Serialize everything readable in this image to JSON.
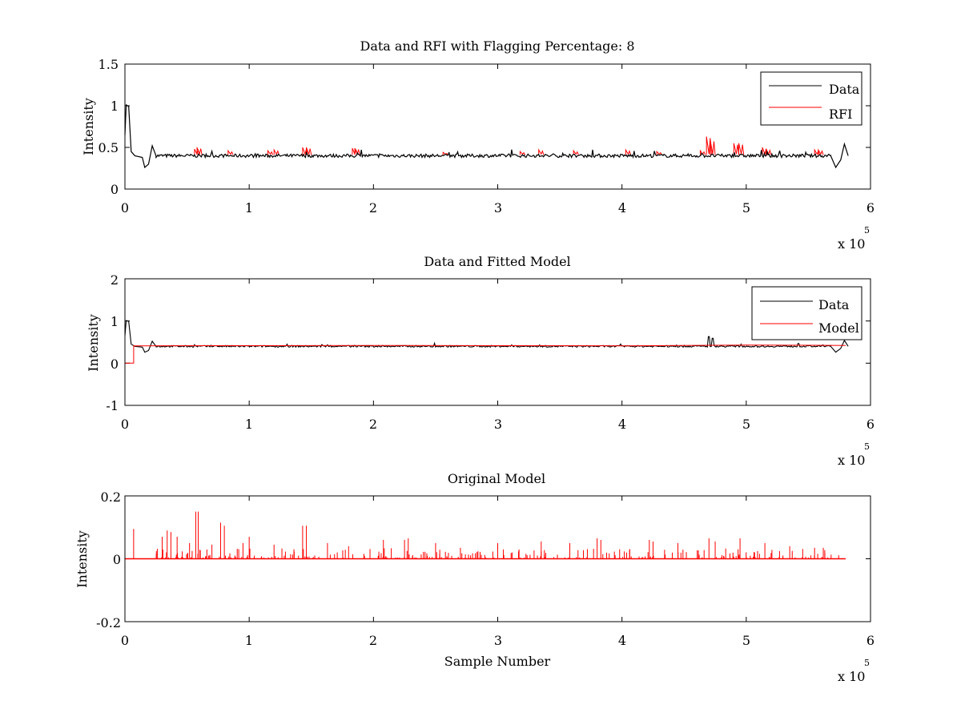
{
  "figure": {
    "background": "#ffffff",
    "exponent_label": "x 10",
    "exponent_power": "5"
  },
  "colors": {
    "data": "#000000",
    "rfi": "#ff0000",
    "model": "#ff0000"
  },
  "chart_data": [
    {
      "type": "line",
      "title": "Data and RFI with Flagging Percentage: 8",
      "xlabel": "",
      "ylabel": "Intensity",
      "xlim": [
        0,
        6
      ],
      "ylim": [
        0,
        1.5
      ],
      "x_ticks": [
        "0",
        "1",
        "2",
        "3",
        "4",
        "5",
        "6"
      ],
      "y_ticks": [
        "0",
        "0.5",
        "1",
        "1.5"
      ],
      "x_scale_note": "x 10^5",
      "legend_position": "top-right",
      "series": [
        {
          "name": "Data",
          "color": "#000000",
          "baseline": 0.4,
          "features": [
            {
              "x": 0.0,
              "y": 0.65
            },
            {
              "x": 0.01,
              "y": 1.01
            },
            {
              "x": 0.03,
              "y": 0.99
            },
            {
              "x": 0.05,
              "y": 0.45
            },
            {
              "x": 0.08,
              "y": 0.4
            },
            {
              "x": 0.14,
              "y": 0.38
            },
            {
              "x": 0.16,
              "y": 0.26
            },
            {
              "x": 0.19,
              "y": 0.3
            },
            {
              "x": 0.22,
              "y": 0.52
            },
            {
              "x": 0.25,
              "y": 0.4
            },
            {
              "x": 5.68,
              "y": 0.4
            },
            {
              "x": 5.72,
              "y": 0.26
            },
            {
              "x": 5.76,
              "y": 0.35
            },
            {
              "x": 5.79,
              "y": 0.54
            },
            {
              "x": 5.82,
              "y": 0.4
            }
          ]
        },
        {
          "name": "RFI",
          "color": "#ff0000",
          "spikes": [
            {
              "x": 0.58,
              "y": 0.48
            },
            {
              "x": 0.6,
              "y": 0.5
            },
            {
              "x": 0.85,
              "y": 0.46
            },
            {
              "x": 1.17,
              "y": 0.46
            },
            {
              "x": 1.22,
              "y": 0.47
            },
            {
              "x": 1.45,
              "y": 0.5
            },
            {
              "x": 1.48,
              "y": 0.5
            },
            {
              "x": 1.85,
              "y": 0.49
            },
            {
              "x": 1.87,
              "y": 0.49
            },
            {
              "x": 2.58,
              "y": 0.44
            },
            {
              "x": 3.2,
              "y": 0.45
            },
            {
              "x": 3.35,
              "y": 0.47
            },
            {
              "x": 3.63,
              "y": 0.46
            },
            {
              "x": 4.05,
              "y": 0.47
            },
            {
              "x": 4.3,
              "y": 0.45
            },
            {
              "x": 4.65,
              "y": 0.46
            },
            {
              "x": 4.7,
              "y": 0.63
            },
            {
              "x": 4.73,
              "y": 0.59
            },
            {
              "x": 4.92,
              "y": 0.55
            },
            {
              "x": 4.96,
              "y": 0.55
            },
            {
              "x": 5.15,
              "y": 0.5
            },
            {
              "x": 5.18,
              "y": 0.48
            },
            {
              "x": 5.57,
              "y": 0.47
            },
            {
              "x": 5.6,
              "y": 0.47
            }
          ]
        }
      ]
    },
    {
      "type": "line",
      "title": "Data and Fitted Model",
      "xlabel": "",
      "ylabel": "Intensity",
      "xlim": [
        0,
        6
      ],
      "ylim": [
        -1,
        2
      ],
      "x_ticks": [
        "0",
        "1",
        "2",
        "3",
        "4",
        "5",
        "6"
      ],
      "y_ticks": [
        "-1",
        "0",
        "1",
        "2"
      ],
      "x_scale_note": "x 10^5",
      "legend_position": "top-right",
      "series": [
        {
          "name": "Data",
          "color": "#000000",
          "baseline": 0.4,
          "features": [
            {
              "x": 0.0,
              "y": 0.65
            },
            {
              "x": 0.01,
              "y": 1.01
            },
            {
              "x": 0.03,
              "y": 0.99
            },
            {
              "x": 0.05,
              "y": 0.45
            },
            {
              "x": 0.08,
              "y": 0.4
            },
            {
              "x": 0.14,
              "y": 0.38
            },
            {
              "x": 0.16,
              "y": 0.26
            },
            {
              "x": 0.19,
              "y": 0.3
            },
            {
              "x": 0.22,
              "y": 0.52
            },
            {
              "x": 0.25,
              "y": 0.4
            },
            {
              "x": 4.7,
              "y": 0.63
            },
            {
              "x": 4.73,
              "y": 0.59
            },
            {
              "x": 5.68,
              "y": 0.4
            },
            {
              "x": 5.72,
              "y": 0.26
            },
            {
              "x": 5.76,
              "y": 0.35
            },
            {
              "x": 5.79,
              "y": 0.54
            },
            {
              "x": 5.82,
              "y": 0.4
            }
          ]
        },
        {
          "name": "Model",
          "color": "#ff0000",
          "points": [
            {
              "x": 0.0,
              "y": 0.0
            },
            {
              "x": 0.07,
              "y": 0.0
            },
            {
              "x": 0.07,
              "y": 0.41
            },
            {
              "x": 2.0,
              "y": 0.42
            },
            {
              "x": 4.0,
              "y": 0.41
            },
            {
              "x": 5.0,
              "y": 0.43
            },
            {
              "x": 5.8,
              "y": 0.42
            }
          ]
        }
      ]
    },
    {
      "type": "line",
      "title": "Original Model",
      "xlabel": "Sample Number",
      "ylabel": "Intensity",
      "xlim": [
        0,
        6
      ],
      "ylim": [
        -0.2,
        0.2
      ],
      "x_ticks": [
        "0",
        "1",
        "2",
        "3",
        "4",
        "5",
        "6"
      ],
      "y_ticks": [
        "-0.2",
        "0",
        "0.2"
      ],
      "x_scale_note": "x 10^5",
      "series": [
        {
          "color": "#ff0000",
          "baseline": 0,
          "x_end": 5.8,
          "spikes": [
            {
              "x": 0.07,
              "y": 0.095
            },
            {
              "x": 0.3,
              "y": 0.07
            },
            {
              "x": 0.34,
              "y": 0.09
            },
            {
              "x": 0.37,
              "y": 0.085
            },
            {
              "x": 0.42,
              "y": 0.07
            },
            {
              "x": 0.52,
              "y": 0.05
            },
            {
              "x": 0.57,
              "y": 0.15
            },
            {
              "x": 0.59,
              "y": 0.15
            },
            {
              "x": 0.7,
              "y": 0.045
            },
            {
              "x": 0.77,
              "y": 0.115
            },
            {
              "x": 0.8,
              "y": 0.105
            },
            {
              "x": 0.95,
              "y": 0.05
            },
            {
              "x": 1.0,
              "y": 0.07
            },
            {
              "x": 1.2,
              "y": 0.045
            },
            {
              "x": 1.43,
              "y": 0.105
            },
            {
              "x": 1.46,
              "y": 0.105
            },
            {
              "x": 1.63,
              "y": 0.05
            },
            {
              "x": 1.8,
              "y": 0.04
            },
            {
              "x": 2.08,
              "y": 0.06
            },
            {
              "x": 2.25,
              "y": 0.06
            },
            {
              "x": 2.28,
              "y": 0.065
            },
            {
              "x": 2.5,
              "y": 0.05
            },
            {
              "x": 2.7,
              "y": 0.035
            },
            {
              "x": 3.0,
              "y": 0.05
            },
            {
              "x": 3.35,
              "y": 0.055
            },
            {
              "x": 3.58,
              "y": 0.05
            },
            {
              "x": 3.8,
              "y": 0.065
            },
            {
              "x": 3.83,
              "y": 0.06
            },
            {
              "x": 4.22,
              "y": 0.06
            },
            {
              "x": 4.25,
              "y": 0.055
            },
            {
              "x": 4.45,
              "y": 0.05
            },
            {
              "x": 4.7,
              "y": 0.065
            },
            {
              "x": 4.75,
              "y": 0.055
            },
            {
              "x": 4.95,
              "y": 0.065
            },
            {
              "x": 5.15,
              "y": 0.05
            },
            {
              "x": 5.35,
              "y": 0.04
            },
            {
              "x": 5.55,
              "y": 0.035
            },
            {
              "x": 5.62,
              "y": 0.035
            }
          ]
        }
      ]
    }
  ]
}
